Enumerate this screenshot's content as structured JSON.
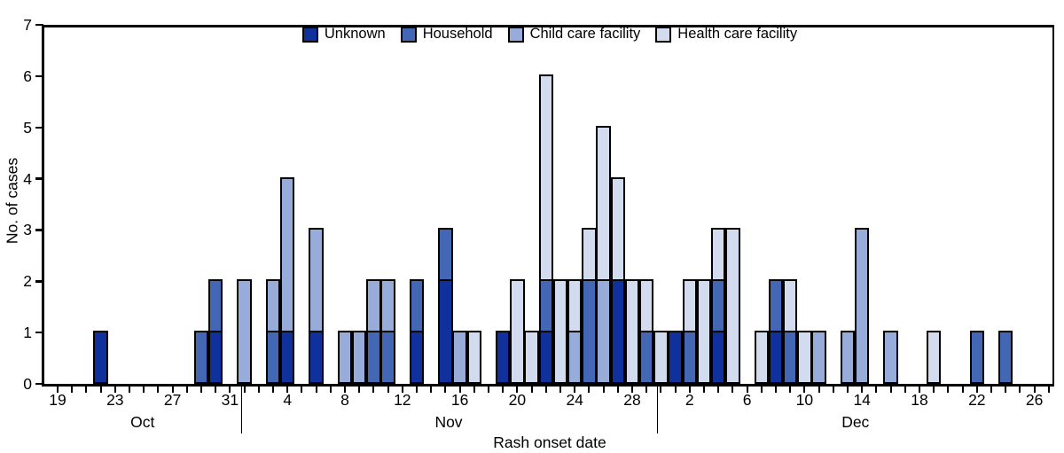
{
  "chart_data": {
    "type": "bar",
    "stacked": true,
    "title": "",
    "xlabel": "Rash onset date",
    "ylabel": "No. of cases",
    "ylim": [
      0,
      7
    ],
    "yticks": [
      0,
      1,
      2,
      3,
      4,
      5,
      6,
      7
    ],
    "grid": false,
    "legend_position": "top-center-inside",
    "x_axis_note": "one bar slot per day, Oct 19 through Dec 27",
    "months": [
      {
        "name": "Oct",
        "first_index": 0,
        "last_index": 12
      },
      {
        "name": "Nov",
        "first_index": 13,
        "last_index": 42
      },
      {
        "name": "Dec",
        "first_index": 43,
        "last_index": 69
      }
    ],
    "x_tick_labels": [
      {
        "index": 0,
        "label": "19"
      },
      {
        "index": 4,
        "label": "23"
      },
      {
        "index": 8,
        "label": "27"
      },
      {
        "index": 12,
        "label": "31"
      },
      {
        "index": 16,
        "label": "4"
      },
      {
        "index": 20,
        "label": "8"
      },
      {
        "index": 24,
        "label": "12"
      },
      {
        "index": 28,
        "label": "16"
      },
      {
        "index": 32,
        "label": "20"
      },
      {
        "index": 36,
        "label": "24"
      },
      {
        "index": 40,
        "label": "28"
      },
      {
        "index": 44,
        "label": "2"
      },
      {
        "index": 48,
        "label": "6"
      },
      {
        "index": 52,
        "label": "10"
      },
      {
        "index": 56,
        "label": "14"
      },
      {
        "index": 60,
        "label": "18"
      },
      {
        "index": 64,
        "label": "22"
      },
      {
        "index": 68,
        "label": "26"
      }
    ],
    "series_order_bottom_to_top": [
      "Unknown",
      "Household",
      "Child care facility",
      "Health care facility"
    ],
    "series": [
      {
        "name": "Unknown",
        "color": "#10309c",
        "values": [
          0,
          0,
          0,
          1,
          0,
          0,
          0,
          0,
          0,
          0,
          0,
          1,
          0,
          0,
          0,
          0,
          1,
          0,
          1,
          0,
          0,
          0,
          0,
          0,
          0,
          1,
          0,
          2,
          0,
          0,
          0,
          1,
          0,
          0,
          1,
          0,
          0,
          0,
          0,
          2,
          0,
          0,
          0,
          1,
          0,
          0,
          1,
          0,
          0,
          0,
          1,
          0,
          0,
          0,
          0,
          0,
          0,
          0,
          0,
          0,
          0,
          0,
          0,
          0,
          0,
          0,
          0,
          0,
          0,
          0
        ]
      },
      {
        "name": "Household",
        "color": "#4467b5",
        "values": [
          0,
          0,
          0,
          0,
          0,
          0,
          0,
          0,
          0,
          0,
          1,
          1,
          0,
          0,
          0,
          1,
          0,
          0,
          0,
          0,
          0,
          0,
          1,
          1,
          0,
          1,
          0,
          1,
          0,
          0,
          0,
          0,
          0,
          0,
          1,
          0,
          0,
          2,
          0,
          0,
          0,
          1,
          0,
          0,
          1,
          0,
          1,
          0,
          0,
          0,
          1,
          1,
          0,
          0,
          0,
          0,
          0,
          0,
          0,
          0,
          0,
          0,
          0,
          0,
          1,
          0,
          1,
          0,
          0,
          0
        ]
      },
      {
        "name": "Child care facility",
        "color": "#97acd9",
        "values": [
          0,
          0,
          0,
          0,
          0,
          0,
          0,
          0,
          0,
          0,
          0,
          0,
          0,
          2,
          0,
          1,
          3,
          0,
          2,
          0,
          1,
          1,
          1,
          1,
          0,
          0,
          0,
          0,
          1,
          0,
          0,
          0,
          0,
          0,
          0,
          0,
          1,
          0,
          2,
          0,
          0,
          0,
          0,
          0,
          0,
          0,
          0,
          0,
          0,
          0,
          0,
          0,
          0,
          1,
          0,
          1,
          3,
          0,
          1,
          0,
          0,
          0,
          0,
          0,
          0,
          0,
          0,
          0,
          0,
          0
        ]
      },
      {
        "name": "Health care facility",
        "color": "#d3dcef",
        "values": [
          0,
          0,
          0,
          0,
          0,
          0,
          0,
          0,
          0,
          0,
          0,
          0,
          0,
          0,
          0,
          0,
          0,
          0,
          0,
          0,
          0,
          0,
          0,
          0,
          0,
          0,
          0,
          0,
          0,
          1,
          0,
          0,
          2,
          1,
          4,
          2,
          1,
          1,
          3,
          2,
          2,
          1,
          1,
          0,
          1,
          2,
          1,
          3,
          0,
          1,
          0,
          1,
          1,
          0,
          0,
          0,
          0,
          0,
          0,
          0,
          0,
          1,
          0,
          0,
          0,
          0,
          0,
          0,
          0,
          0
        ]
      }
    ]
  }
}
